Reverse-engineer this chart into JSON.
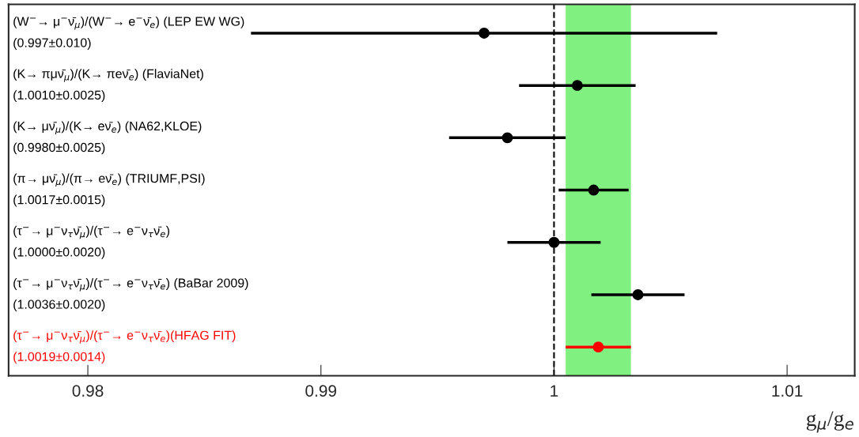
{
  "chart_data": {
    "type": "scatter",
    "orientation": "horizontal",
    "xlabel": "g$_{μ}$/g$_{e}$",
    "categories": [
      "(W$^{−}$→ μ$^{−}$ν̄$_{μ}$)/(W$^{−}$→ e$^{−}$ν̄$_{e}$) (LEP EW WG)\n(0.997±0.010)",
      "(K→ πμν̄$_{μ}$)/(K→ πeν̄$_{e}$) (FlaviaNet)\n(1.0010±0.0025)",
      "(K→ μν̄$_{μ}$)/(K→ eν̄$_{e}$) (NA62,KLOE)\n(0.9980±0.0025)",
      "(π→ μν̄$_{μ}$)/(π→ eν̄$_{e}$) (TRIUMF,PSI)\n(1.0017±0.0015)",
      "(τ$^{−}$→ μ$^{−}$ν$_{τ}$ν̄$_{μ}$)/(τ$^{−}$→ e$^{−}$ν$_{τ}$ν̄$_{e}$)\n(1.0000±0.0020)",
      "(τ$^{−}$→ μ$^{−}$ν$_{τ}$ν̄$_{μ}$)/(τ$^{−}$→ e$^{−}$ν$_{τ}$ν̄$_{e}$) (BaBar 2009)\n(1.0036±0.0020)",
      "(τ$^{−}$→ μ$^{−}$ν$_{τ}$ν̄$_{μ}$)/(τ$^{−}$→ e$^{−}$ν$_{τ}$ν̄$_{e}$)(HFAG FIT)\n(1.0019±0.0014)"
    ],
    "series": [
      {
        "color": "#000000",
        "values": [
          0.997,
          1.001,
          0.998,
          1.0017,
          1.0,
          1.0036,
          null
        ],
        "errors": [
          0.01,
          0.0025,
          0.0025,
          0.0015,
          0.002,
          0.002,
          null
        ]
      },
      {
        "color": "#ff0000",
        "values": [
          null,
          null,
          null,
          null,
          null,
          null,
          1.0019
        ],
        "errors": [
          null,
          null,
          null,
          null,
          null,
          null,
          0.0014
        ]
      }
    ],
    "xlim": [
      0.9766,
      1.0129
    ],
    "xticks": [
      0.98,
      0.99,
      1,
      1.01
    ],
    "ref_lines": [
      {
        "axis": "x",
        "value": 1,
        "color": "#000000",
        "line_style": "dashed"
      }
    ],
    "bands": [
      {
        "axis": "x",
        "from": 1.0005,
        "to": 1.0033,
        "color": "#80f080"
      }
    ],
    "marker": "circle",
    "grid": false,
    "legend": false
  }
}
